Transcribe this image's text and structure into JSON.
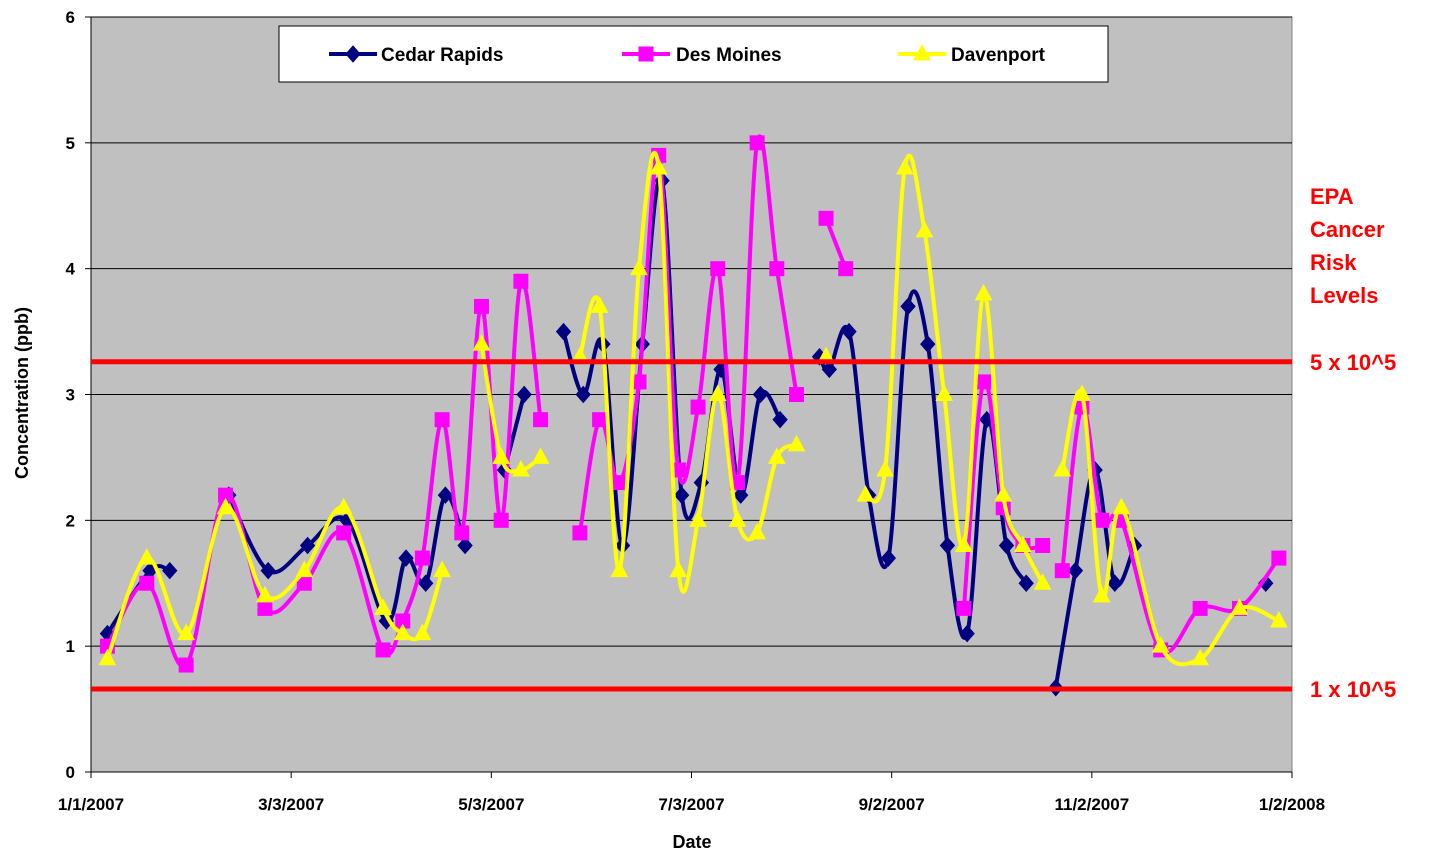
{
  "chart_data": {
    "type": "line",
    "xlabel": "Date",
    "ylabel": "Concentration (ppb)",
    "ylim": [
      0,
      6
    ],
    "xlim": [
      "2007-01-01",
      "2008-01-02"
    ],
    "y_ticks": [
      "0",
      "1",
      "2",
      "3",
      "4",
      "5",
      "6"
    ],
    "x_ticks": [
      {
        "date": "2007-01-01",
        "label": "1/1/2007"
      },
      {
        "date": "2007-03-03",
        "label": "3/3/2007"
      },
      {
        "date": "2007-05-03",
        "label": "5/3/2007"
      },
      {
        "date": "2007-07-03",
        "label": "7/3/2007"
      },
      {
        "date": "2007-09-02",
        "label": "9/2/2007"
      },
      {
        "date": "2007-11-02",
        "label": "11/2/2007"
      },
      {
        "date": "2008-01-02",
        "label": "1/2/2008"
      }
    ],
    "grid": true,
    "plot_background": "#c0c0c0",
    "legend_position": "top",
    "series": [
      {
        "name": "Cedar Rapids",
        "color": "#000080",
        "marker": "diamond",
        "segments": [
          [
            [
              "2007-01-06",
              1.1
            ],
            [
              "2007-01-19",
              1.6
            ],
            [
              "2007-01-25",
              1.6
            ]
          ],
          [
            [
              "2007-02-12",
              2.2
            ],
            [
              "2007-02-24",
              1.6
            ],
            [
              "2007-03-08",
              1.8
            ],
            [
              "2007-03-20",
              2.0
            ],
            [
              "2007-04-01",
              1.2
            ],
            [
              "2007-04-07",
              1.7
            ],
            [
              "2007-04-13",
              1.5
            ],
            [
              "2007-04-19",
              2.2
            ],
            [
              "2007-04-25",
              1.8
            ]
          ],
          [
            [
              "2007-05-07",
              2.4
            ],
            [
              "2007-05-13",
              3.0
            ]
          ],
          [
            [
              "2007-05-25",
              3.5
            ],
            [
              "2007-05-31",
              3.0
            ],
            [
              "2007-06-06",
              3.4
            ],
            [
              "2007-06-12",
              1.8
            ],
            [
              "2007-06-18",
              3.4
            ],
            [
              "2007-06-24",
              4.7
            ],
            [
              "2007-06-30",
              2.2
            ],
            [
              "2007-07-06",
              2.3
            ],
            [
              "2007-07-12",
              3.2
            ],
            [
              "2007-07-18",
              2.2
            ],
            [
              "2007-07-24",
              3.0
            ],
            [
              "2007-07-30",
              2.8
            ]
          ],
          [
            [
              "2007-08-11",
              3.3
            ],
            [
              "2007-08-14",
              3.2
            ],
            [
              "2007-08-20",
              3.5
            ],
            [
              "2007-08-26",
              2.2
            ],
            [
              "2007-09-01",
              1.7
            ],
            [
              "2007-09-07",
              3.7
            ],
            [
              "2007-09-13",
              3.4
            ],
            [
              "2007-09-19",
              1.8
            ],
            [
              "2007-09-25",
              1.1
            ],
            [
              "2007-10-01",
              2.8
            ],
            [
              "2007-10-07",
              1.8
            ],
            [
              "2007-10-13",
              1.5
            ]
          ],
          [
            [
              "2007-10-22",
              0.67
            ],
            [
              "2007-10-28",
              1.6
            ],
            [
              "2007-11-03",
              2.4
            ],
            [
              "2007-11-09",
              1.5
            ],
            [
              "2007-11-15",
              1.8
            ]
          ],
          [
            [
              "2007-12-25",
              1.5
            ]
          ]
        ]
      },
      {
        "name": "Des Moines",
        "color": "#ff00ff",
        "marker": "square",
        "segments": [
          [
            [
              "2007-01-06",
              1.0
            ],
            [
              "2007-01-18",
              1.5
            ],
            [
              "2007-01-30",
              0.85
            ],
            [
              "2007-02-11",
              2.2
            ],
            [
              "2007-02-23",
              1.3
            ],
            [
              "2007-03-07",
              1.5
            ],
            [
              "2007-03-19",
              1.9
            ],
            [
              "2007-03-31",
              0.97
            ],
            [
              "2007-04-06",
              1.2
            ],
            [
              "2007-04-12",
              1.7
            ],
            [
              "2007-04-18",
              2.8
            ],
            [
              "2007-04-24",
              1.9
            ],
            [
              "2007-04-30",
              3.7
            ],
            [
              "2007-05-06",
              2.0
            ],
            [
              "2007-05-12",
              3.9
            ],
            [
              "2007-05-18",
              2.8
            ]
          ],
          [
            [
              "2007-05-30",
              1.9
            ],
            [
              "2007-06-05",
              2.8
            ],
            [
              "2007-06-11",
              2.3
            ],
            [
              "2007-06-17",
              3.1
            ],
            [
              "2007-06-23",
              4.9
            ],
            [
              "2007-06-29",
              2.4
            ],
            [
              "2007-07-05",
              2.9
            ],
            [
              "2007-07-11",
              4.0
            ],
            [
              "2007-07-17",
              2.3
            ],
            [
              "2007-07-23",
              5.0
            ],
            [
              "2007-07-29",
              4.0
            ],
            [
              "2007-08-04",
              3.0
            ]
          ],
          [
            [
              "2007-08-13",
              4.4
            ],
            [
              "2007-08-19",
              4.0
            ]
          ],
          [
            [
              "2007-09-24",
              1.3
            ],
            [
              "2007-09-30",
              3.1
            ],
            [
              "2007-10-06",
              2.1
            ],
            [
              "2007-10-12",
              1.8
            ],
            [
              "2007-10-18",
              1.8
            ]
          ],
          [
            [
              "2007-10-24",
              1.6
            ],
            [
              "2007-10-30",
              2.9
            ],
            [
              "2007-11-05",
              2.0
            ],
            [
              "2007-11-11",
              2.0
            ],
            [
              "2007-11-23",
              0.97
            ],
            [
              "2007-12-05",
              1.3
            ],
            [
              "2007-12-17",
              1.3
            ],
            [
              "2007-12-29",
              1.7
            ]
          ]
        ]
      },
      {
        "name": "Davenport",
        "color": "#ffff00",
        "marker": "triangle",
        "segments": [
          [
            [
              "2007-01-06",
              0.9
            ],
            [
              "2007-01-18",
              1.7
            ],
            [
              "2007-01-30",
              1.1
            ],
            [
              "2007-02-11",
              2.1
            ],
            [
              "2007-02-23",
              1.4
            ],
            [
              "2007-03-07",
              1.6
            ],
            [
              "2007-03-19",
              2.1
            ],
            [
              "2007-03-31",
              1.3
            ],
            [
              "2007-04-06",
              1.1
            ],
            [
              "2007-04-12",
              1.1
            ],
            [
              "2007-04-18",
              1.6
            ]
          ],
          [
            [
              "2007-04-30",
              3.4
            ],
            [
              "2007-05-06",
              2.5
            ],
            [
              "2007-05-12",
              2.4
            ],
            [
              "2007-05-18",
              2.5
            ]
          ],
          [
            [
              "2007-05-30",
              3.3
            ],
            [
              "2007-06-05",
              3.7
            ],
            [
              "2007-06-11",
              1.6
            ],
            [
              "2007-06-17",
              4.0
            ],
            [
              "2007-06-23",
              4.8
            ],
            [
              "2007-06-29",
              1.6
            ],
            [
              "2007-07-05",
              2.0
            ],
            [
              "2007-07-11",
              3.0
            ],
            [
              "2007-07-17",
              2.0
            ],
            [
              "2007-07-23",
              1.9
            ],
            [
              "2007-07-29",
              2.5
            ],
            [
              "2007-08-04",
              2.6
            ]
          ],
          [
            [
              "2007-08-13",
              3.3
            ]
          ],
          [
            [
              "2007-08-25",
              2.2
            ],
            [
              "2007-08-31",
              2.4
            ],
            [
              "2007-09-06",
              4.8
            ],
            [
              "2007-09-12",
              4.3
            ],
            [
              "2007-09-18",
              3.0
            ],
            [
              "2007-09-24",
              1.8
            ],
            [
              "2007-09-30",
              3.8
            ],
            [
              "2007-10-06",
              2.2
            ],
            [
              "2007-10-12",
              1.8
            ],
            [
              "2007-10-18",
              1.5
            ]
          ],
          [
            [
              "2007-10-24",
              2.4
            ],
            [
              "2007-10-30",
              3.0
            ],
            [
              "2007-11-05",
              1.4
            ],
            [
              "2007-11-11",
              2.1
            ],
            [
              "2007-11-23",
              1.0
            ],
            [
              "2007-12-05",
              0.9
            ],
            [
              "2007-12-17",
              1.3
            ],
            [
              "2007-12-29",
              1.2
            ]
          ]
        ]
      }
    ],
    "reference_lines": [
      {
        "y": 3.26,
        "label": "5 x 10^5",
        "color": "#ff0000"
      },
      {
        "y": 0.66,
        "label": "1 x 10^5",
        "color": "#ff0000"
      }
    ],
    "annotation": {
      "lines": [
        "EPA",
        "Cancer",
        "Risk",
        "Levels"
      ],
      "color": "#ff0000"
    }
  }
}
